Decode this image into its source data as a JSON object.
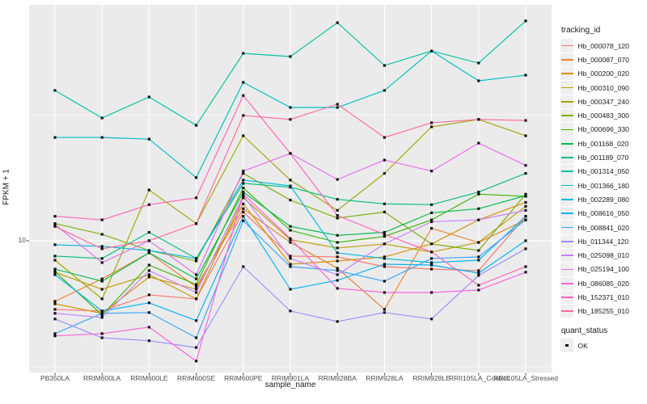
{
  "chart_data": {
    "type": "line",
    "title": "",
    "xlabel": "sample_name",
    "ylabel": "FPKM + 1",
    "y_scale": "log10",
    "ylim": [
      3.0,
      86.3
    ],
    "y_major_breaks": [
      10
    ],
    "y_minor_breaks": [
      31.6,
      3.16
    ],
    "y_tick_labels": [
      "10"
    ],
    "grid": "major-and-minor, white on grey panel",
    "panel_color": "#EBEBEB",
    "point_marker": "small-black-square",
    "categories": [
      "PB350LA",
      "RRIM600LA",
      "RRIM600LE",
      "RRIM600SE",
      "RRIM600PE",
      "RRIM901LA",
      "RRIM928BA",
      "RRIM928LA",
      "RRIM928LE",
      "RRII105LA_Control",
      "RRII105LA_Stressed"
    ],
    "series": [
      {
        "name": "Hb_000078_120",
        "color": "#F8766D",
        "values": [
          5.34,
          5.26,
          6.1,
          5.88,
          13.0,
          8.69,
          8.63,
          7.89,
          7.72,
          7.61,
          12.5
        ]
      },
      {
        "name": "Hb_000087_070",
        "color": "#EA8331",
        "values": [
          5.75,
          7.06,
          8.95,
          6.56,
          13.4,
          9.85,
          7.78,
          5.34,
          11.2,
          9.85,
          12.1
        ]
      },
      {
        "name": "Hb_000200_020",
        "color": "#D89000",
        "values": [
          5.62,
          5.15,
          7.18,
          6.42,
          14.0,
          8.07,
          8.31,
          8.63,
          9.71,
          12.1,
          14.2
        ]
      },
      {
        "name": "Hb_000310_090",
        "color": "#C09B00",
        "values": [
          7.5,
          6.42,
          7.33,
          5.88,
          14.8,
          10.1,
          9.36,
          9.71,
          9.02,
          9.85,
          13.7
        ]
      },
      {
        "name": "Hb_000347_240",
        "color": "#A3A500",
        "values": [
          8.37,
          5.88,
          15.9,
          11.7,
          26.1,
          17.4,
          13.2,
          18.5,
          28.3,
          30.3,
          26.1
        ]
      },
      {
        "name": "Hb_000483_300",
        "color": "#7CAE00",
        "values": [
          11.7,
          10.6,
          9.15,
          8.31,
          18.5,
          14.5,
          12.3,
          13.0,
          9.71,
          9.15,
          15.3
        ]
      },
      {
        "name": "Hb_000696_330",
        "color": "#39B600",
        "values": [
          7.55,
          5.07,
          8.01,
          6.71,
          16.2,
          11.0,
          9.85,
          10.4,
          12.1,
          15.3,
          15.0
        ]
      },
      {
        "name": "Hb_001168_020",
        "color": "#00BB4E",
        "values": [
          7.72,
          6.91,
          8.95,
          7.06,
          15.6,
          11.4,
          10.5,
          10.8,
          12.9,
          13.4,
          15.1
        ]
      },
      {
        "name": "Hb_001189_070",
        "color": "#00BF7D",
        "values": [
          8.69,
          8.5,
          10.8,
          8.5,
          16.9,
          16.3,
          14.6,
          14.0,
          13.9,
          15.6,
          18.5
        ]
      },
      {
        "name": "Hb_001314_050",
        "color": "#00C1A3",
        "values": [
          39.5,
          30.7,
          37.2,
          28.7,
          55.4,
          53.8,
          73.3,
          49.6,
          56.6,
          50.7,
          74.5
        ]
      },
      {
        "name": "Hb_001366_180",
        "color": "#00BFC4",
        "values": [
          25.7,
          25.7,
          25.3,
          17.8,
          42.5,
          33.8,
          33.8,
          39.5,
          56.6,
          43.1,
          45.4
        ]
      },
      {
        "name": "Hb_002289_080",
        "color": "#00BAE0",
        "values": [
          9.64,
          9.5,
          9.15,
          8.5,
          17.4,
          16.5,
          8.95,
          8.5,
          8.19,
          8.37,
          12.5
        ]
      },
      {
        "name": "Hb_008616_050",
        "color": "#00B0F6",
        "values": [
          7.33,
          5.26,
          5.67,
          4.82,
          12.5,
          6.42,
          6.96,
          8.07,
          8.01,
          7.44,
          10.0
        ]
      },
      {
        "name": "Hb_008841_020",
        "color": "#35A2FF",
        "values": [
          4.28,
          5.15,
          5.19,
          4.12,
          12.0,
          7.89,
          7.61,
          6.91,
          8.5,
          8.63,
          12.1
        ]
      },
      {
        "name": "Hb_011344_120",
        "color": "#9590FF",
        "values": [
          4.89,
          4.12,
          4.01,
          3.77,
          7.89,
          5.26,
          4.78,
          5.19,
          4.89,
          7.28,
          9.29
        ]
      },
      {
        "name": "Hb_025098_010",
        "color": "#C77CFF",
        "values": [
          5.15,
          4.96,
          7.61,
          6.23,
          15.1,
          8.5,
          7.33,
          9.71,
          11.9,
          12.1,
          13.2
        ]
      },
      {
        "name": "Hb_025194_100",
        "color": "#E76BF3",
        "values": [
          11.6,
          8.19,
          10.0,
          7.33,
          18.9,
          22.2,
          17.5,
          20.9,
          18.9,
          24.4,
          19.9
        ]
      },
      {
        "name": "Hb_086085_020",
        "color": "#FA62DB",
        "values": [
          4.19,
          4.28,
          4.54,
          3.33,
          15.3,
          10.2,
          6.47,
          6.23,
          6.23,
          6.37,
          7.5
        ]
      },
      {
        "name": "Hb_152371_010",
        "color": "#FF62BC",
        "values": [
          12.5,
          12.1,
          13.9,
          14.8,
          37.7,
          22.2,
          12.6,
          10.6,
          9.02,
          6.66,
          7.89
        ]
      },
      {
        "name": "Hb_185255_010",
        "color": "#FF6A98",
        "values": [
          11.4,
          9.29,
          10.0,
          11.7,
          31.4,
          30.3,
          34.8,
          25.7,
          29.4,
          30.3,
          30.0
        ]
      }
    ],
    "legend": {
      "position": "right",
      "tracking_title": "tracking_id",
      "quant_title": "quant_status",
      "quant_items": [
        {
          "label": "OK",
          "marker": "black-square"
        }
      ]
    }
  }
}
